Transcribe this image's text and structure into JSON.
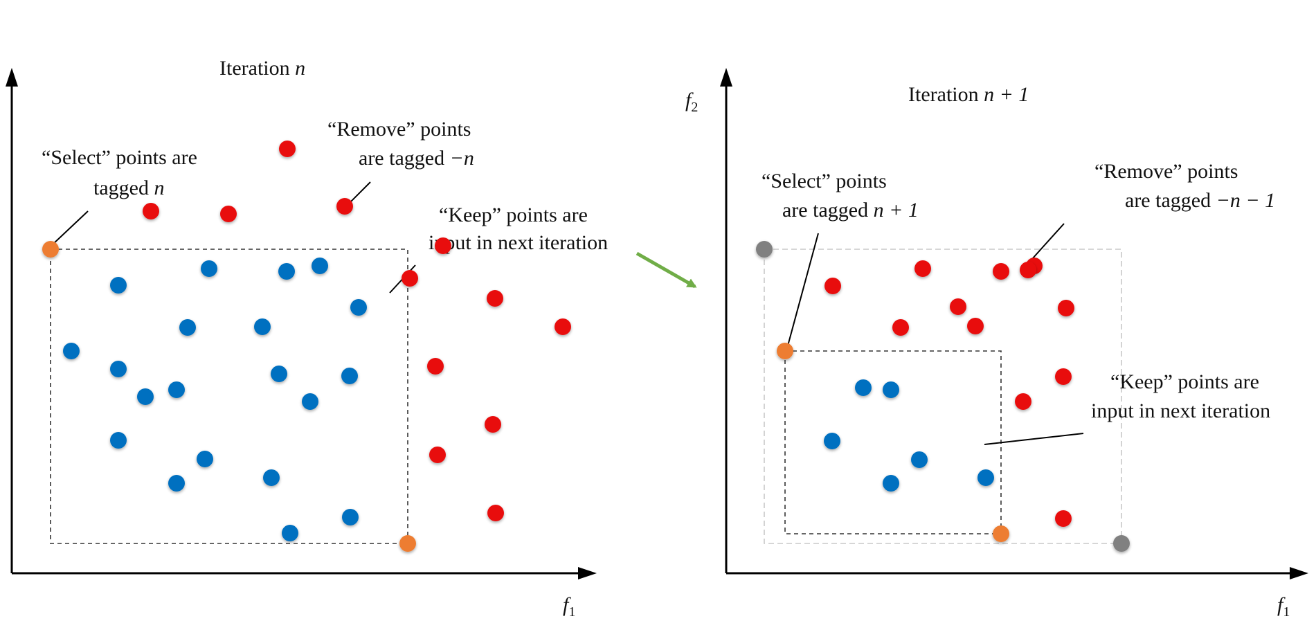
{
  "colors": {
    "select": "#ED7D31",
    "keep": "#0070C0",
    "remove": "#E81010",
    "prior_select": "#808080",
    "transition_arrow": "#70AD47"
  },
  "left_panel": {
    "title_prefix": "Iteration",
    "title_var": "n",
    "x_axis_label": "f",
    "x_axis_sub": "1",
    "select_label_line1": "“Select” points are",
    "select_label_line2_prefix": "tagged",
    "select_label_line2_var": "n",
    "remove_label_line1": "“Remove” points",
    "remove_label_line2_prefix": "are tagged",
    "remove_label_line2_var": "−n",
    "keep_label_line1": "“Keep” points are",
    "keep_label_line2": "input in next iteration"
  },
  "right_panel": {
    "title_prefix": "Iteration",
    "title_var": "n + 1",
    "x_axis_label": "f",
    "x_axis_sub": "1",
    "y_axis_label": "f",
    "y_axis_sub": "2",
    "select_label_line1": "“Select” points",
    "select_label_line2_prefix": "are tagged",
    "select_label_line2_var": "n + 1",
    "remove_label_line1": "“Remove” points",
    "remove_label_line2_prefix": "are tagged",
    "remove_label_line2_var": "−n − 1",
    "keep_label_line1": "“Keep” points are",
    "keep_label_line2": "input in next iteration"
  },
  "left_points": {
    "select": 2,
    "keep": 22,
    "remove": 12
  },
  "right_points": {
    "prior_select": 2,
    "select": 2,
    "keep": 6,
    "remove": 12
  }
}
